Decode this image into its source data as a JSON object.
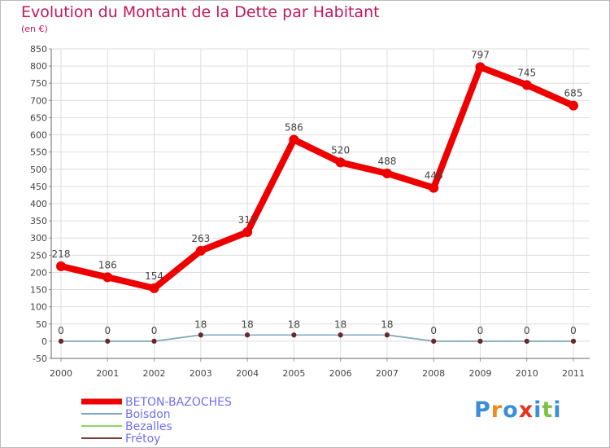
{
  "title": "Evolution du Montant de la Dette par Habitant",
  "subtitle": "(en €)",
  "logo_text": "Proxiti",
  "chart_data": {
    "type": "line",
    "title": "Evolution du Montant de la Dette par Habitant",
    "ylabel": "(en €)",
    "xlabel": "",
    "ylim": [
      -50,
      850
    ],
    "yticks": [
      -50,
      0,
      50,
      100,
      150,
      200,
      250,
      300,
      350,
      400,
      450,
      500,
      550,
      600,
      650,
      700,
      750,
      800,
      850
    ],
    "categories": [
      "2000",
      "2001",
      "2002",
      "2003",
      "2004",
      "2005",
      "2006",
      "2007",
      "2008",
      "2009",
      "2010",
      "2011"
    ],
    "legend_position": "bottom-left",
    "series": [
      {
        "name": "BETON-BAZOCHES",
        "color": "#ee0000",
        "values": [
          218,
          186,
          154,
          263,
          317,
          586,
          520,
          488,
          446,
          797,
          745,
          685
        ]
      },
      {
        "name": "Boisdon",
        "color": "#7ba7c9",
        "values": [
          0,
          0,
          0,
          18,
          18,
          18,
          18,
          18,
          0,
          0,
          0,
          0
        ]
      },
      {
        "name": "Bezalles",
        "color": "#8fd46a",
        "values": [
          0,
          0,
          0,
          18,
          18,
          18,
          18,
          18,
          0,
          0,
          0,
          0
        ]
      },
      {
        "name": "Frétoy",
        "color": "#7a3b3b",
        "values": [
          0,
          0,
          0,
          18,
          18,
          18,
          18,
          18,
          0,
          0,
          0,
          0
        ]
      }
    ]
  }
}
